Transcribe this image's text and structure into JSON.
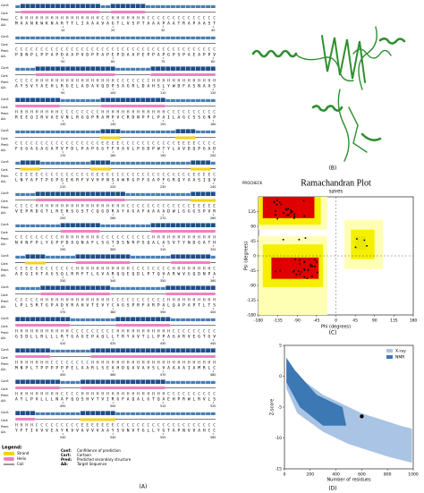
{
  "panel_a": {
    "row_labels": {
      "conf": "Conf:",
      "cart": "Cart:",
      "pred": "Pred:",
      "aa": "AA:"
    },
    "blocks": [
      {
        "pred": "CHHHHHHHHHHHHHHHHCCHHHHHHHCCCCCCCCCCCCCC",
        "aa": "MAANKWKNARTTLIAAAVAGTLVSPTAAAPAATRAPAAST",
        "ticks": [
          10,
          20,
          30,
          40
        ]
      },
      {
        "pred": "CCCCCCCCCCCCCCCCCCCCCCCCCCCCCCCCCCCCCCCC",
        "aa": "PDNPLPPAPDAAPVDPPAPEPDAAPEPPAPGPSPAEAPPV",
        "ticks": [
          50,
          60,
          70,
          80
        ]
      },
      {
        "pred": "CCCCHHHHHHHHHHHHHHHHCCCCCCCHHHHHHHHHHHHH",
        "aa": "AYSVYAEHLRGELADAVQDPSAGRLDAHSLYWDFASNAAS",
        "ticks": [
          90,
          100,
          110,
          120
        ]
      },
      {
        "pred": "HHHHHHHHHCCCCCCCCHHHHHHHHHHHHHCCCCCCCCCC",
        "aa": "REEQIRVAEVNLRGQPRAMPVCRDNPFLPAILAGCSSGNP",
        "ticks": [
          130,
          140,
          150,
          160
        ]
      },
      {
        "pred": "CCCCCCCCCCCCCCCCCEEEECCCCCCCCCCCEEEECCCC",
        "aa": "FGGAGAGAPVFDLPAPGGTFVAVLPGDPWTYLAVDQPGAD",
        "ticks": [
          170,
          180,
          190,
          200
        ]
      },
      {
        "pred": "CEEEECCCCCCCCCCEEEECCCCCCCCCCCCCCCCEEEEC",
        "aa": "LNYAFTPGPGEKRFVVHPNSAWRGPFGAPFGRQYAASIQV",
        "ticks": [
          210,
          220,
          230,
          240
        ]
      },
      {
        "pred": "CCCCHHHHHHHHHHHHHHHHHHCCCCCCCCCCCCCEEEEE",
        "aa": "VEPRDGTLRERSGSTCQGDRAYAGAFAAAADWLGGGSPVR",
        "ticks": [
          250,
          260,
          270,
          280
        ]
      },
      {
        "pred": "CCCCCCCCCHHHHHHHHCCCCCCCCCCHHHHHHHHHHHHH",
        "aa": "NVNFPLYGPPDAQNAFLSGTDSNRPSQALASVTYNDGATH",
        "ticks": [
          290,
          300,
          310,
          320
        ]
      },
      {
        "pred": "CCEEEECCCCCCHHHHHHHHHHHCCCCCCCCHHHHHHHHC",
        "aa": "AEGIVTAGSQLRRFTLGVARQQEQDLPTQVARWVGQDNPA",
        "ticks": [
          330,
          340,
          350,
          360
        ]
      },
      {
        "pred": "CCCCCHHHHHHHHHHHHHHCCCCCCCCCCCHHHHHHHHHH",
        "aa": "LPLSRTGPADVRAHVTEVYCAGSPRFARPALQAPAPTLTS",
        "ticks": [
          370,
          380,
          390,
          400
        ]
      },
      {
        "pred": "HHHHHHHHHHHCCCCCCCCCHHHHHHHHHHHCCCCCCCCC",
        "aa": "GSDLLRLLLRTGAGEPAQLLTRYAVTLLPPAGARVEGTGV",
        "ticks": [
          410,
          420,
          430,
          440
        ]
      },
      {
        "pred": "HHHHHHHCCCCCCCCHHHHHHHHHHHHHHHHHHHHHHHHH",
        "aa": "MNPLTPPPPPPELAARLSEAHDQAVAVSLVAAAAIAMRLC",
        "ticks": [
          450,
          460,
          470,
          480
        ]
      },
      {
        "pred": "HHHHHHHHHCCCCHHHHHHHHHHHHHHHHHCCCCCCCCCC",
        "aa": "AYLPVLLLNAFQQSHVTVIRGFAQALGTQAEHPRWLRVLS",
        "ticks": [
          490,
          500,
          510,
          520
        ]
      },
      {
        "pred": "HHHHCCCCCCCCCEEEEEEECCCCCCCCCCCCCCCCCCCC",
        "aa": "YFTIVVVEAYKVVAVVVAAYSVNVTGLLYGTAPNVVAHCC",
        "ticks": [
          530,
          540,
          550,
          560
        ]
      }
    ],
    "legend": {
      "title": "Legend:",
      "items": [
        {
          "label": "Strand",
          "color": "#f2d21b"
        },
        {
          "label": "Helix",
          "color": "#ee82c0"
        },
        {
          "label": "Coil",
          "color": "#000000"
        }
      ],
      "keys": [
        {
          "key": "Conf:",
          "text": "Confidence of prediction"
        },
        {
          "key": "Cart:",
          "text": "Cartoon"
        },
        {
          "key": "Pred:",
          "text": "Predicted secondary structure"
        },
        {
          "key": "AA:",
          "text": "Target Sequence"
        }
      ]
    },
    "label": "(A)"
  },
  "panel_b": {
    "label": "(B)"
  },
  "chart_data": [
    {
      "type": "ramachandran",
      "title": "Ramachandran Plot",
      "subtitle": "saves",
      "source": "PROCHECK",
      "x_label": "Phi (degrees)",
      "y_label": "Psi (degrees)",
      "xlim": [
        -180,
        180
      ],
      "ylim": [
        -180,
        180
      ],
      "xticks": [
        -180,
        -135,
        -90,
        -45,
        0,
        45,
        90,
        135,
        180
      ],
      "yticks": [
        -180,
        -135,
        -90,
        -45,
        0,
        45,
        90,
        135
      ],
      "label": "(C)"
    },
    {
      "type": "zscore",
      "x_label": "Number of residues",
      "y_label": "Z-score",
      "xlim": [
        0,
        1000
      ],
      "xticks": [
        0,
        200,
        400,
        600,
        800,
        1000
      ],
      "ylim": [
        -15,
        5
      ],
      "yticks": [
        -15,
        -10,
        -5,
        0,
        5
      ],
      "legend": "upper right",
      "series": [
        {
          "name": "X-ray",
          "color": "#a9c4e4"
        },
        {
          "name": "NMR",
          "color": "#3c78b4"
        }
      ],
      "point": {
        "x": 600,
        "y": -6.5
      },
      "label": "(D)"
    }
  ]
}
